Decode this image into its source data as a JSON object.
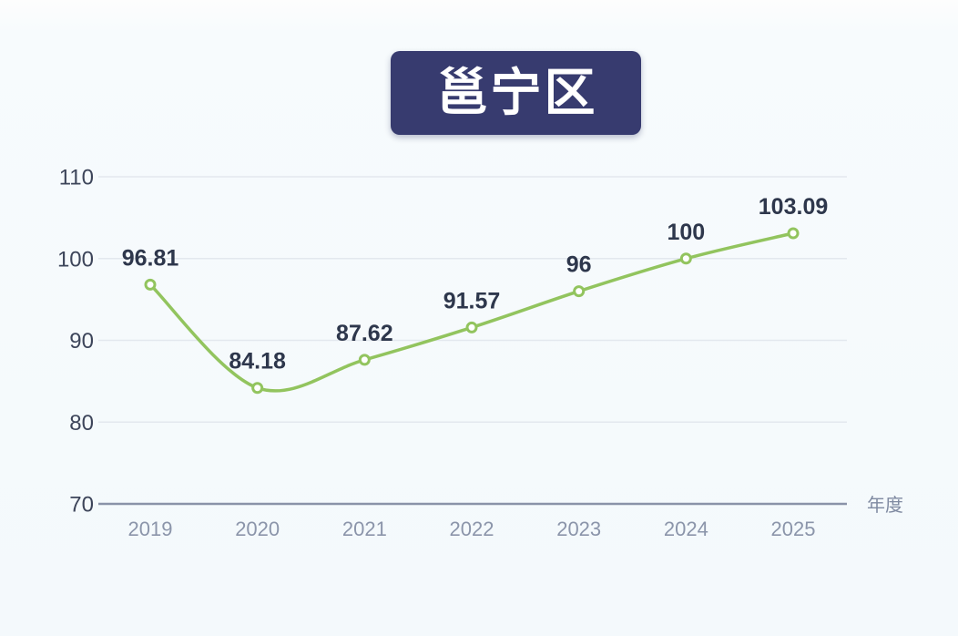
{
  "title_badge": {
    "label": "邕宁区",
    "bg_color": "#373b6f",
    "text_color": "#ffffff"
  },
  "chart_data": {
    "type": "line",
    "title": "邕宁区",
    "categories": [
      "2019",
      "2020",
      "2021",
      "2022",
      "2023",
      "2024",
      "2025"
    ],
    "values": [
      96.81,
      84.18,
      87.62,
      91.57,
      96,
      100,
      103.09
    ],
    "point_labels": [
      "96.81",
      "84.18",
      "87.62",
      "91.57",
      "96",
      "100",
      "103.09"
    ],
    "xlabel": "年度",
    "ylabel": "",
    "ylim": [
      70,
      110
    ],
    "yticks": [
      70,
      80,
      90,
      100,
      110
    ],
    "grid": true,
    "smooth": true,
    "legend_position": "none",
    "marker": "open-circle"
  },
  "colors": {
    "line": "#92c45e",
    "marker_fill": "#ffffff",
    "gridline": "#e3e8ee",
    "axis_line": "#8a93a8",
    "y_tick_label": "#3d455a",
    "x_tick_label": "#8b95aa",
    "point_label": "#2e374c",
    "xlabel_text": "#7f8aa1"
  }
}
